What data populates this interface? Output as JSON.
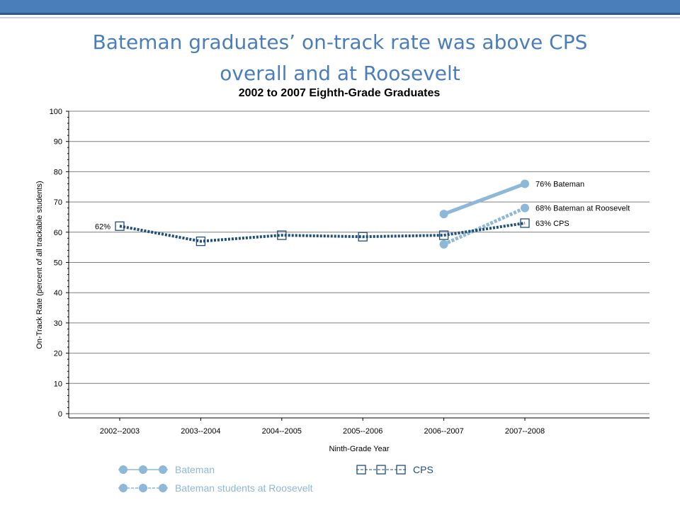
{
  "slide": {
    "title": "Bateman graduates’ on-track rate was above CPS overall and at Roosevelt"
  },
  "colors": {
    "accent": "#4a7ebb",
    "bateman": "#8db8d8",
    "cps": "#1f4e79",
    "grid": "#7f7f7f"
  },
  "chart_data": {
    "type": "line",
    "title": "2002 to 2007 Eighth-Grade Graduates",
    "xlabel": "Ninth-Grade Year",
    "ylabel": "On-Track Rate (percent of all trackable students)",
    "categories": [
      "2002--2003",
      "2003--2004",
      "2004--2005",
      "2005--2006",
      "2006--2007",
      "2007--2008"
    ],
    "ylim": [
      0,
      100
    ],
    "yticks": [
      0,
      10,
      20,
      30,
      40,
      50,
      60,
      70,
      80,
      90,
      100
    ],
    "grid": true,
    "legend_position": "bottom",
    "series": [
      {
        "name": "Bateman",
        "style": "solid-circle",
        "color": "#8db8d8",
        "values": [
          null,
          null,
          null,
          null,
          66,
          76
        ]
      },
      {
        "name": "Bateman students at Roosevelt",
        "style": "dashed-circle",
        "color": "#8db8d8",
        "values": [
          null,
          null,
          null,
          null,
          56,
          68
        ]
      },
      {
        "name": "CPS",
        "style": "dashed-square",
        "color": "#1f4e79",
        "values": [
          62,
          57,
          59,
          58.5,
          59,
          63
        ]
      }
    ],
    "annotations": [
      {
        "series": 2,
        "index": 0,
        "text": "62%",
        "side": "left"
      },
      {
        "series": 0,
        "index": 5,
        "text": "76% Bateman",
        "side": "right"
      },
      {
        "series": 1,
        "index": 5,
        "text": "68% Bateman at Roosevelt",
        "side": "right"
      },
      {
        "series": 2,
        "index": 5,
        "text": "63% CPS",
        "side": "right"
      }
    ]
  }
}
